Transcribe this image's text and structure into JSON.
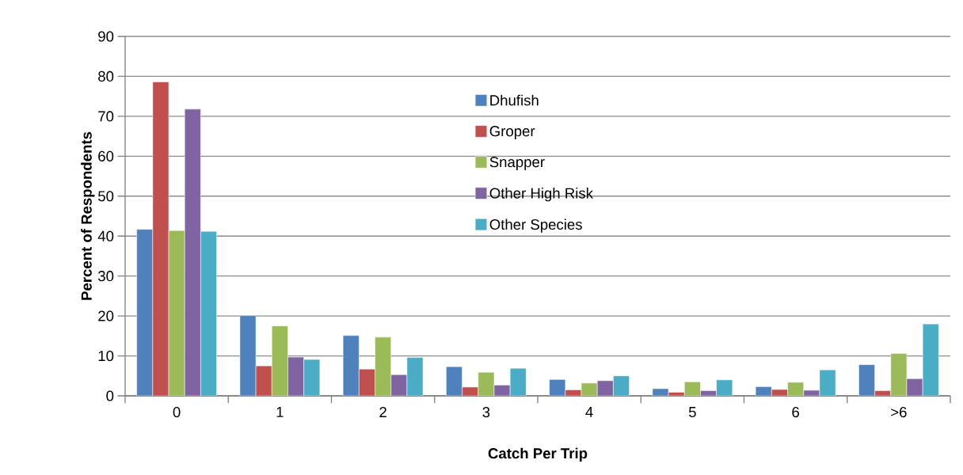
{
  "chart_data": {
    "type": "bar",
    "xlabel": "Catch Per Trip",
    "ylabel": "Percent of Respondents",
    "categories": [
      "0",
      "1",
      "2",
      "3",
      "4",
      "5",
      "6",
      ">6"
    ],
    "series": [
      {
        "name": "Dhufish",
        "color": "#4f81bd",
        "values": [
          41.7,
          20.1,
          15.1,
          7.3,
          4.1,
          1.8,
          2.3,
          7.8
        ]
      },
      {
        "name": "Groper",
        "color": "#c0504d",
        "values": [
          78.6,
          7.5,
          6.7,
          2.2,
          1.5,
          0.9,
          1.6,
          1.3
        ]
      },
      {
        "name": "Snapper",
        "color": "#9bbb59",
        "values": [
          41.4,
          17.5,
          14.7,
          5.9,
          3.2,
          3.5,
          3.4,
          10.6
        ]
      },
      {
        "name": "Other High Risk",
        "color": "#8064a2",
        "values": [
          71.8,
          9.7,
          5.3,
          2.7,
          3.8,
          1.3,
          1.4,
          4.3
        ]
      },
      {
        "name": "Other Species",
        "color": "#4bacc6",
        "values": [
          41.2,
          9.1,
          9.6,
          6.9,
          5.0,
          4.0,
          6.5,
          18.0
        ]
      }
    ],
    "ylim": [
      0,
      90
    ],
    "yticks": [
      0,
      10,
      20,
      30,
      40,
      50,
      60,
      70,
      80,
      90
    ],
    "grid": "y",
    "legend": "top"
  }
}
